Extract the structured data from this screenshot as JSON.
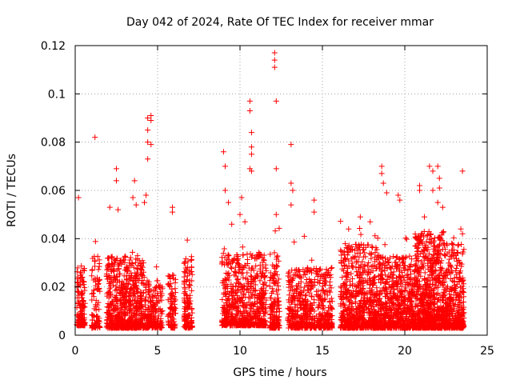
{
  "chart_data": {
    "type": "scatter",
    "title": "Day 042 of 2024, Rate Of TEC Index for receiver mmar",
    "xlabel": "GPS time / hours",
    "ylabel": "ROTI / TECUs",
    "xlim": [
      0,
      25
    ],
    "ylim": [
      0,
      0.12
    ],
    "x_ticks": [
      0,
      5,
      10,
      15,
      20,
      25
    ],
    "x_tick_labels": [
      "0",
      "5",
      "10",
      "15",
      "20",
      "25"
    ],
    "y_ticks": [
      0,
      0.02,
      0.04,
      0.06,
      0.08,
      0.1,
      0.12
    ],
    "y_tick_labels": [
      "0",
      "0.02",
      "0.04",
      "0.06",
      "0.08",
      "0.1",
      "0.12"
    ],
    "grid": true,
    "marker": "plus",
    "series_color": "#ff0000",
    "clusters": [
      {
        "x": [
          0.1,
          0.6
        ],
        "base": 0.004,
        "spread": 0.025,
        "n": 140
      },
      {
        "x": [
          1.0,
          1.5
        ],
        "base": 0.003,
        "spread": 0.03,
        "n": 90
      },
      {
        "x": [
          1.9,
          4.2
        ],
        "base": 0.003,
        "spread": 0.03,
        "n": 700
      },
      {
        "x": [
          4.2,
          5.3
        ],
        "base": 0.003,
        "spread": 0.02,
        "n": 220
      },
      {
        "x": [
          5.6,
          6.1
        ],
        "base": 0.003,
        "spread": 0.022,
        "n": 90
      },
      {
        "x": [
          6.6,
          7.1
        ],
        "base": 0.003,
        "spread": 0.03,
        "n": 130
      },
      {
        "x": [
          8.9,
          11.6
        ],
        "base": 0.004,
        "spread": 0.03,
        "n": 650
      },
      {
        "x": [
          11.8,
          12.4
        ],
        "base": 0.003,
        "spread": 0.032,
        "n": 170
      },
      {
        "x": [
          12.9,
          14.3
        ],
        "base": 0.003,
        "spread": 0.025,
        "n": 300
      },
      {
        "x": [
          14.3,
          15.6
        ],
        "base": 0.003,
        "spread": 0.025,
        "n": 260
      },
      {
        "x": [
          16.1,
          18.5
        ],
        "base": 0.003,
        "spread": 0.035,
        "n": 700
      },
      {
        "x": [
          18.5,
          20.6
        ],
        "base": 0.003,
        "spread": 0.03,
        "n": 650
      },
      {
        "x": [
          20.6,
          22.4
        ],
        "base": 0.003,
        "spread": 0.04,
        "n": 800
      },
      {
        "x": [
          22.4,
          23.6
        ],
        "base": 0.003,
        "spread": 0.035,
        "n": 380
      }
    ],
    "outliers": [
      [
        0.2,
        0.057
      ],
      [
        1.2,
        0.082
      ],
      [
        2.5,
        0.069
      ],
      [
        2.5,
        0.064
      ],
      [
        2.6,
        0.052
      ],
      [
        2.1,
        0.053
      ],
      [
        3.5,
        0.057
      ],
      [
        3.6,
        0.064
      ],
      [
        3.7,
        0.054
      ],
      [
        4.4,
        0.09
      ],
      [
        4.6,
        0.091
      ],
      [
        4.6,
        0.089
      ],
      [
        4.4,
        0.085
      ],
      [
        4.6,
        0.079
      ],
      [
        4.4,
        0.08
      ],
      [
        4.4,
        0.073
      ],
      [
        4.3,
        0.058
      ],
      [
        4.2,
        0.055
      ],
      [
        5.9,
        0.053
      ],
      [
        5.9,
        0.051
      ],
      [
        9.0,
        0.076
      ],
      [
        9.1,
        0.07
      ],
      [
        9.1,
        0.06
      ],
      [
        9.3,
        0.055
      ],
      [
        9.5,
        0.046
      ],
      [
        10.1,
        0.057
      ],
      [
        10.0,
        0.05
      ],
      [
        10.3,
        0.047
      ],
      [
        10.6,
        0.097
      ],
      [
        10.6,
        0.093
      ],
      [
        10.7,
        0.084
      ],
      [
        10.7,
        0.078
      ],
      [
        10.7,
        0.075
      ],
      [
        10.7,
        0.068
      ],
      [
        10.6,
        0.069
      ],
      [
        12.1,
        0.117
      ],
      [
        12.1,
        0.114
      ],
      [
        12.1,
        0.111
      ],
      [
        12.2,
        0.097
      ],
      [
        12.2,
        0.069
      ],
      [
        12.2,
        0.05
      ],
      [
        13.1,
        0.079
      ],
      [
        13.1,
        0.063
      ],
      [
        13.2,
        0.06
      ],
      [
        13.1,
        0.054
      ],
      [
        13.9,
        0.041
      ],
      [
        14.5,
        0.056
      ],
      [
        14.5,
        0.051
      ],
      [
        17.3,
        0.049
      ],
      [
        17.9,
        0.047
      ],
      [
        18.6,
        0.07
      ],
      [
        18.6,
        0.067
      ],
      [
        18.7,
        0.063
      ],
      [
        18.9,
        0.059
      ],
      [
        19.6,
        0.058
      ],
      [
        19.7,
        0.056
      ],
      [
        20.9,
        0.062
      ],
      [
        20.9,
        0.06
      ],
      [
        21.5,
        0.07
      ],
      [
        21.7,
        0.068
      ],
      [
        22.0,
        0.07
      ],
      [
        22.1,
        0.065
      ],
      [
        22.1,
        0.061
      ],
      [
        21.7,
        0.06
      ],
      [
        22.0,
        0.055
      ],
      [
        22.3,
        0.053
      ],
      [
        23.5,
        0.068
      ],
      [
        23.4,
        0.044
      ],
      [
        23.5,
        0.042
      ]
    ]
  }
}
